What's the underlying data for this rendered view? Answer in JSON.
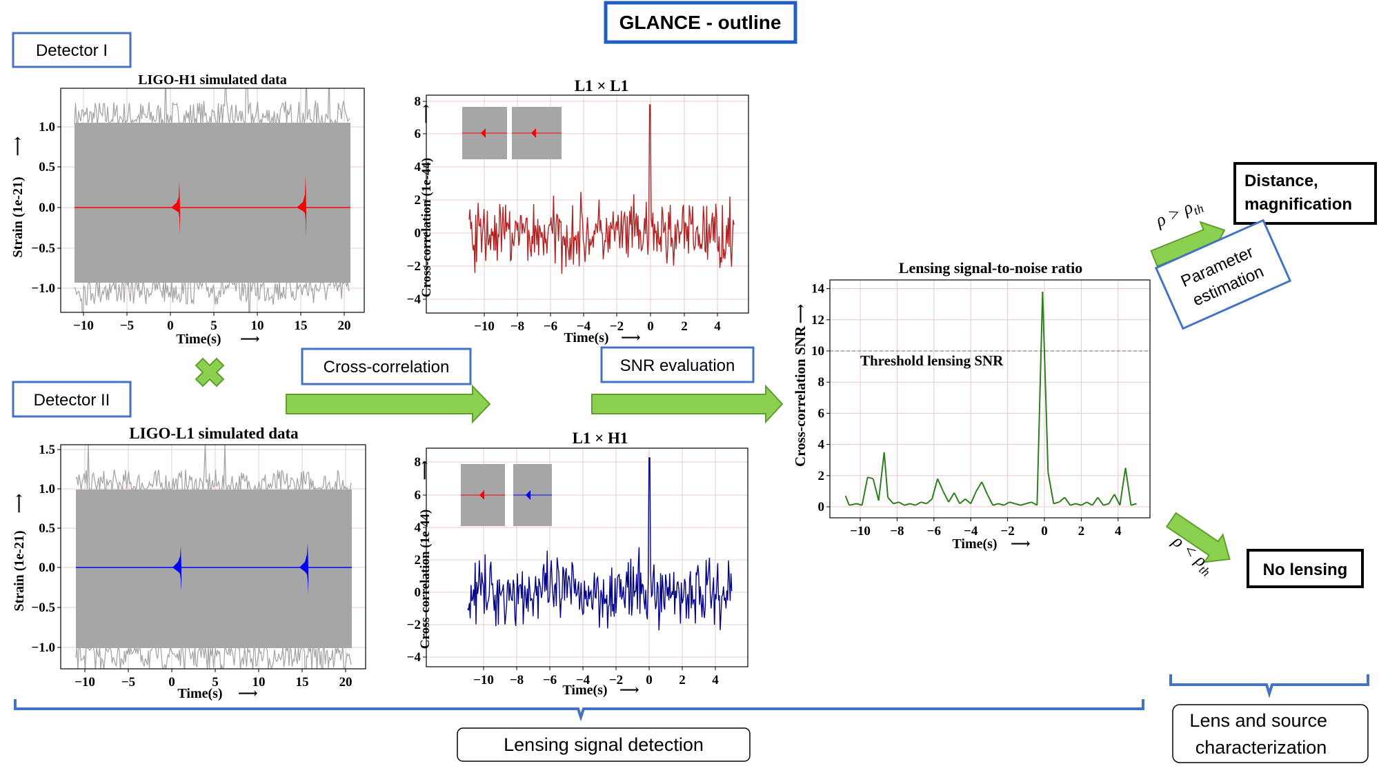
{
  "header": {
    "title": "GLANCE - outline"
  },
  "detectors": {
    "first": "Detector I",
    "second": "Detector II"
  },
  "strain_plots": {
    "top": {
      "title": "LIGO-H1 simulated data",
      "ylabel": "Strain (1e-21)",
      "xlabel": "Time(s)",
      "yticks": [
        "1.0",
        "0.5",
        "0.0",
        "−0.5",
        "−1.0"
      ],
      "xticks": [
        "−10",
        "−5",
        "0",
        "5",
        "10",
        "15",
        "20"
      ],
      "signal_color": "#ff0000"
    },
    "bottom": {
      "title": "LIGO-L1 simulated data",
      "ylabel": "Strain (1e-21)",
      "xlabel": "Time(s)",
      "yticks": [
        "1.5",
        "1.0",
        "0.5",
        "0.0",
        "−0.5",
        "−1.0"
      ],
      "xticks": [
        "−10",
        "−5",
        "0",
        "5",
        "10",
        "15",
        "20"
      ],
      "signal_color": "#0000ff"
    }
  },
  "xcorr_plots": {
    "top": {
      "title": "L1 × L1",
      "ylabel": "Cross-correlation (1e-44)",
      "xlabel": "Time(s)",
      "yticks": [
        "8",
        "6",
        "4",
        "2",
        "0",
        "−2",
        "−4"
      ],
      "xticks": [
        "−10",
        "−8",
        "−6",
        "−4",
        "−2",
        "0",
        "2",
        "4"
      ],
      "line_color": "#b22222"
    },
    "bottom": {
      "title": "L1 × H1",
      "ylabel": "Cross-correlation (1e-44)",
      "xlabel": "Time(s)",
      "yticks": [
        "8",
        "6",
        "4",
        "2",
        "0",
        "−2",
        "−4"
      ],
      "xticks": [
        "−10",
        "−8",
        "−6",
        "−4",
        "−2",
        "0",
        "2",
        "4"
      ],
      "line_color": "#00008b"
    }
  },
  "process_labels": {
    "cross_correlation": "Cross-correlation",
    "snr_evaluation": "SNR evaluation",
    "parameter_estimation": [
      "Parameter",
      "estimation"
    ]
  },
  "outcomes": {
    "detected": [
      "Distance,",
      "magnification"
    ],
    "not_detected": "No lensing",
    "condition_above": "ρ > ρ",
    "condition_below": "ρ < ρ",
    "condition_sub": "th"
  },
  "bottom_labels": {
    "detection": "Lensing signal detection",
    "characterization": [
      "Lens and source",
      "characterization"
    ]
  },
  "colors": {
    "accent_blue": "#4472c4",
    "arrow_green": "#8bd04f",
    "arrow_edge": "#5f9e2e",
    "noise_gray": "#a6a6a6",
    "snr_green": "#2e7d1e"
  },
  "chart_data": [
    {
      "type": "line",
      "title": "Lensing signal-to-noise ratio",
      "xlabel": "Time(s)",
      "ylabel": "Cross-correlation SNR",
      "xlim": [
        -11,
        5.2
      ],
      "ylim": [
        -0.6,
        14.5
      ],
      "xticks": [
        "−10",
        "−8",
        "−6",
        "−4",
        "−2",
        "0",
        "2",
        "4"
      ],
      "yticks": [
        "14",
        "12",
        "10",
        "8",
        "6",
        "4",
        "2",
        "0"
      ],
      "threshold": 10,
      "threshold_label": "Threshold lensing SNR",
      "x": [
        -10.8,
        -10.6,
        -10.2,
        -9.9,
        -9.6,
        -9.3,
        -9.0,
        -8.7,
        -8.5,
        -8.2,
        -7.9,
        -7.6,
        -7.3,
        -7.0,
        -6.7,
        -6.4,
        -6.1,
        -5.8,
        -5.5,
        -5.2,
        -4.9,
        -4.6,
        -4.3,
        -4.0,
        -3.7,
        -3.4,
        -3.1,
        -2.8,
        -2.5,
        -2.2,
        -1.9,
        -1.6,
        -1.3,
        -1.0,
        -0.7,
        -0.4,
        -0.1,
        0.2,
        0.5,
        0.8,
        1.1,
        1.4,
        1.7,
        2.0,
        2.3,
        2.6,
        2.9,
        3.2,
        3.5,
        3.8,
        4.1,
        4.4,
        4.7,
        5.0
      ],
      "y": [
        0.7,
        0.1,
        0.2,
        0.1,
        1.9,
        1.8,
        0.4,
        3.5,
        0.6,
        0.2,
        0.3,
        0.1,
        0.2,
        0.1,
        0.3,
        0.2,
        0.5,
        1.8,
        1.0,
        0.3,
        0.9,
        0.2,
        0.5,
        0.2,
        1.0,
        1.6,
        0.8,
        0.1,
        0.2,
        0.1,
        0.3,
        0.2,
        0.1,
        0.2,
        0.3,
        0.1,
        13.8,
        2.2,
        0.2,
        0.3,
        0.6,
        0.1,
        0.2,
        0.1,
        0.3,
        0.1,
        0.6,
        0.1,
        0.2,
        0.8,
        0.1,
        2.5,
        0.1,
        0.2
      ]
    }
  ]
}
